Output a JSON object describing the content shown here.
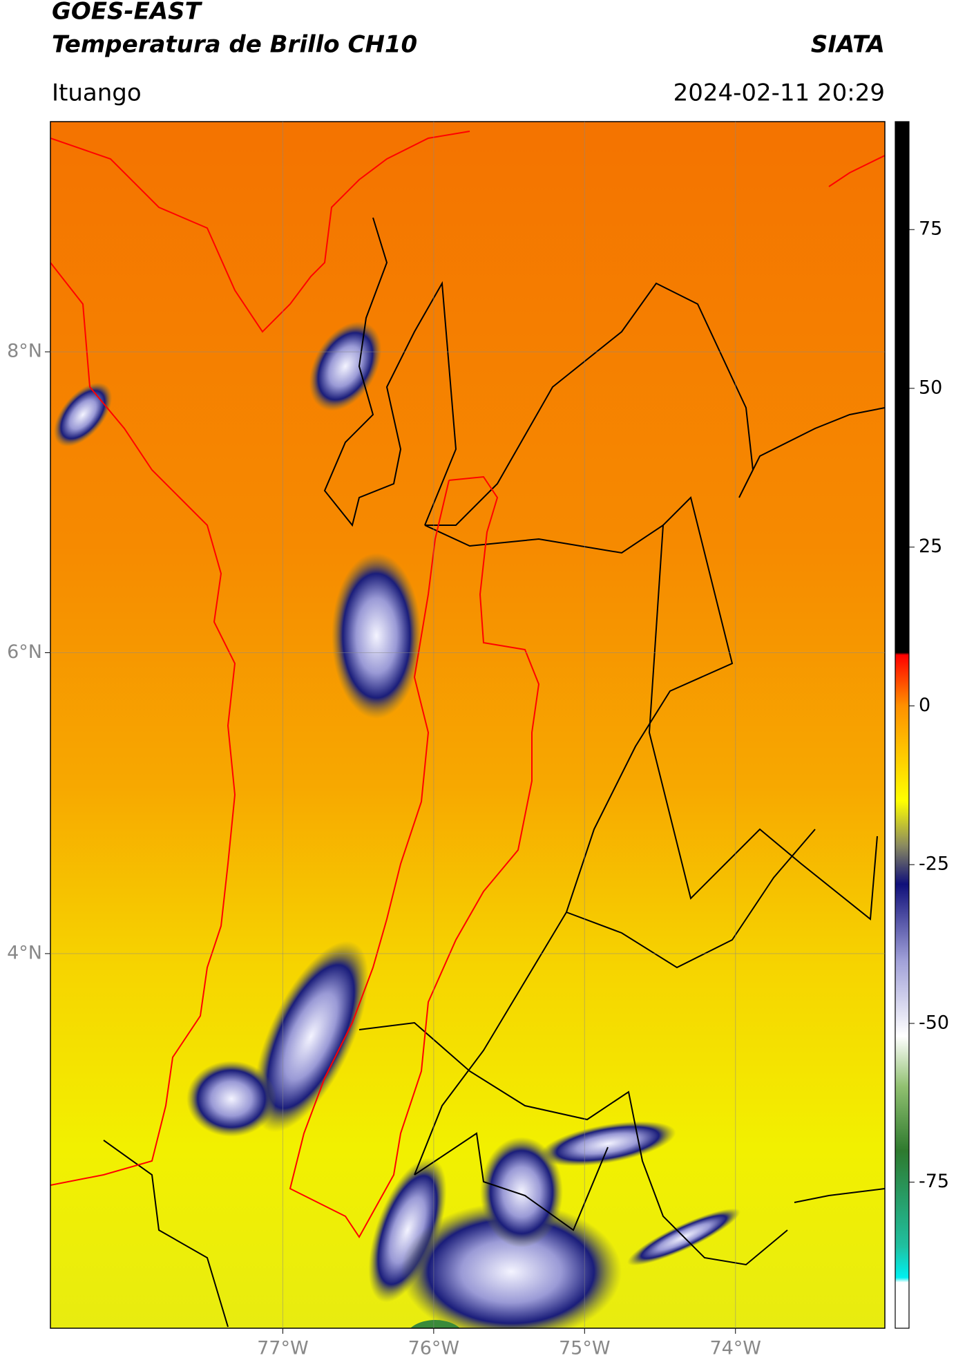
{
  "header": {
    "title": "GOES-EAST",
    "subtitle": "Temperatura de Brillo CH10",
    "source": "SIATA",
    "location": "Ituango",
    "datetime": "2024-02-11 20:29"
  },
  "map": {
    "xlim": [
      -78.54,
      -73.01
    ],
    "ylim": [
      1.51,
      9.53
    ],
    "xticks": [
      {
        "value": -77,
        "label": "77°W"
      },
      {
        "value": -76,
        "label": "76°W"
      },
      {
        "value": -75,
        "label": "75°W"
      },
      {
        "value": -74,
        "label": "74°W"
      }
    ],
    "yticks": [
      {
        "value": 8,
        "label": "8°N"
      },
      {
        "value": 6,
        "label": "6°N"
      },
      {
        "value": 4,
        "label": "4°N"
      }
    ],
    "grid": true
  },
  "colorbar": {
    "lim": [
      -98,
      92
    ],
    "ticks": [
      75,
      50,
      25,
      0,
      -25,
      -50,
      -75
    ]
  }
}
